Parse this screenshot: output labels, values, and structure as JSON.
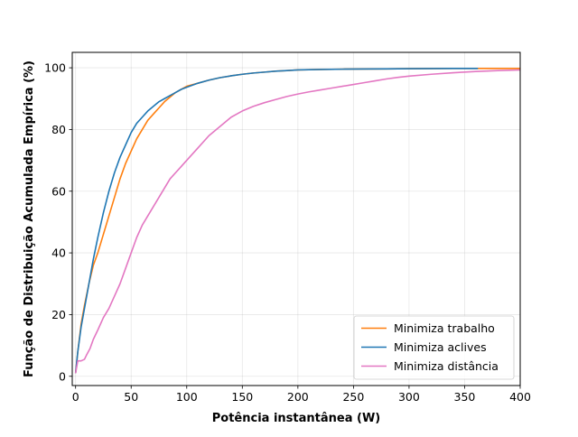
{
  "chart_data": {
    "type": "line",
    "xlabel": "Potência instantânea (W)",
    "ylabel": "Função de Distribuição Acumulada Empírica (%)",
    "xlim": [
      -3,
      400
    ],
    "ylim": [
      -3,
      105
    ],
    "xticks": [
      0,
      50,
      100,
      150,
      200,
      250,
      300,
      350,
      400
    ],
    "yticks": [
      0,
      20,
      40,
      60,
      80,
      100
    ],
    "grid": true,
    "legend_position": "lower-right",
    "series": [
      {
        "name": "Minimiza trabalho",
        "color": "#ff7f0e",
        "x": [
          0,
          2,
          5,
          8,
          12,
          16,
          20,
          25,
          30,
          35,
          40,
          45,
          50,
          55,
          60,
          65,
          70,
          75,
          80,
          85,
          90,
          95,
          100,
          110,
          120,
          130,
          140,
          150,
          160,
          170,
          180,
          190,
          200,
          220,
          240,
          260,
          280,
          300,
          320,
          340,
          360,
          380,
          400
        ],
        "y": [
          1,
          8,
          17,
          23,
          30,
          36,
          40,
          46,
          52,
          58,
          64,
          69,
          73,
          77,
          80,
          83,
          85,
          87,
          89,
          90.5,
          92,
          93,
          94,
          95,
          96,
          96.8,
          97.4,
          97.9,
          98.3,
          98.6,
          98.9,
          99.1,
          99.3,
          99.45,
          99.55,
          99.6,
          99.65,
          99.7,
          99.75,
          99.8,
          99.8,
          99.8,
          99.8
        ]
      },
      {
        "name": "Minimiza aclives",
        "color": "#1f77b4",
        "x": [
          0,
          2,
          5,
          8,
          12,
          16,
          20,
          25,
          30,
          35,
          40,
          45,
          50,
          55,
          60,
          65,
          70,
          75,
          80,
          85,
          90,
          95,
          100,
          110,
          120,
          130,
          140,
          150,
          160,
          170,
          180,
          190,
          200,
          220,
          240,
          260,
          280,
          300,
          320,
          340,
          362
        ],
        "y": [
          1,
          8,
          16,
          22,
          30,
          38,
          45,
          53,
          60,
          66,
          71,
          75,
          79,
          82,
          84,
          86,
          87.5,
          89,
          90,
          91,
          92,
          93,
          93.7,
          95,
          96,
          96.8,
          97.4,
          97.9,
          98.3,
          98.6,
          98.9,
          99.1,
          99.3,
          99.45,
          99.55,
          99.6,
          99.65,
          99.7,
          99.75,
          99.8,
          99.8
        ]
      },
      {
        "name": "Minimiza distância",
        "color": "#e377c2",
        "x": [
          0,
          2,
          5,
          8,
          10,
          13,
          16,
          20,
          25,
          30,
          35,
          40,
          45,
          50,
          55,
          60,
          65,
          70,
          75,
          80,
          85,
          90,
          95,
          100,
          110,
          120,
          130,
          140,
          150,
          160,
          170,
          180,
          190,
          200,
          210,
          220,
          230,
          240,
          250,
          260,
          270,
          280,
          290,
          300,
          320,
          340,
          360,
          380,
          400
        ],
        "y": [
          1,
          5,
          5,
          5.5,
          7,
          9,
          12,
          15,
          19,
          22,
          26,
          30,
          35,
          40,
          45,
          49,
          52,
          55,
          58,
          61,
          64,
          66,
          68,
          70,
          74,
          78,
          81,
          84,
          86,
          87.5,
          88.7,
          89.7,
          90.7,
          91.5,
          92.2,
          92.8,
          93.4,
          94,
          94.6,
          95.2,
          95.8,
          96.4,
          96.9,
          97.3,
          97.9,
          98.4,
          98.8,
          99.1,
          99.3
        ]
      }
    ]
  }
}
